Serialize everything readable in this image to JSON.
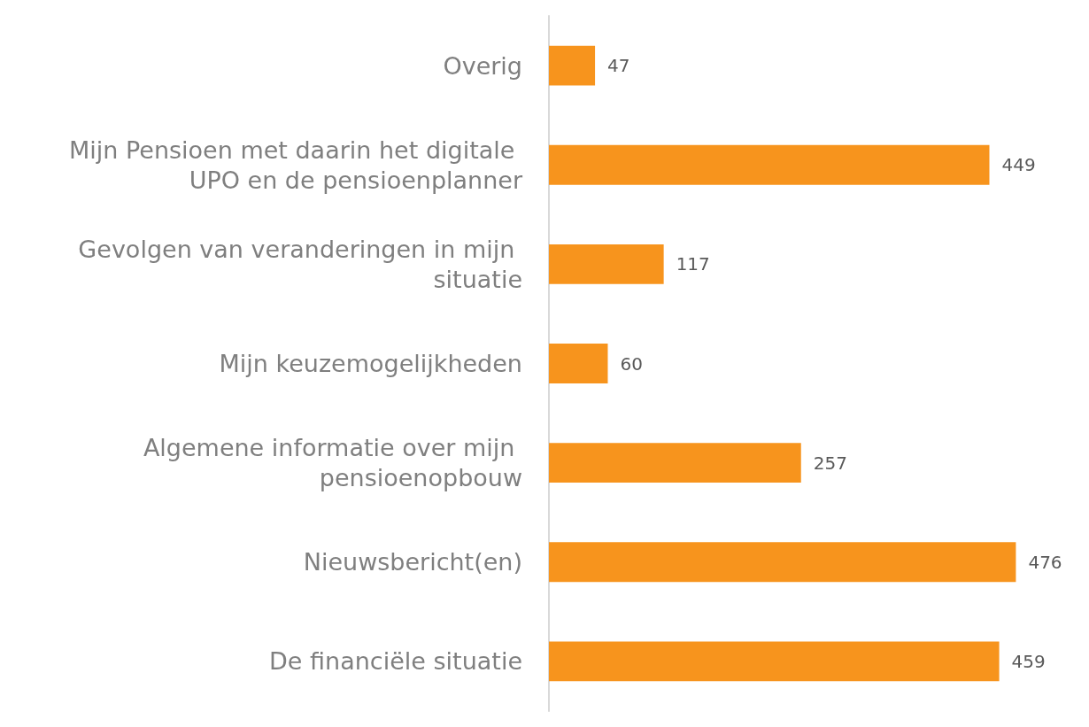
{
  "chart_data": {
    "type": "bar",
    "orientation": "horizontal",
    "categories": [
      "Overig",
      "Mijn Pensioen met daarin het digitale UPO en de pensioenplanner",
      "Gevolgen van veranderingen in mijn situatie",
      "Mijn keuzemogelijkheden",
      "Algemene informatie over mijn pensioenopbouw",
      "Nieuwsbericht(en)",
      "De financiële situatie"
    ],
    "values": [
      47,
      449,
      117,
      60,
      257,
      476,
      459
    ],
    "color": "#f7941d",
    "data_labels": true
  }
}
